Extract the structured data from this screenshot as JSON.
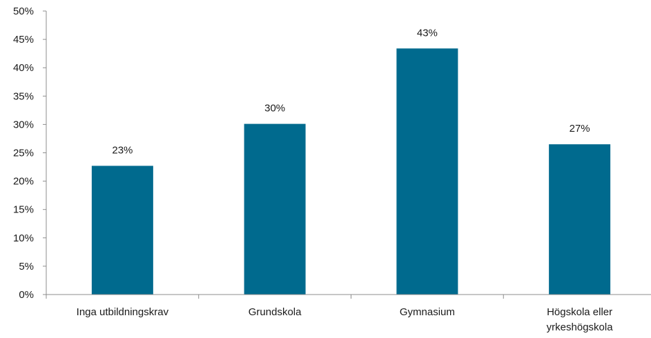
{
  "chart_data": {
    "type": "bar",
    "categories": [
      [
        "Inga utbildningskrav"
      ],
      [
        "Grundskola"
      ],
      [
        "Gymnasium"
      ],
      [
        "Högskola eller",
        "yrkeshögskola"
      ]
    ],
    "values": [
      22.7,
      30.1,
      43.4,
      26.5
    ],
    "data_labels": [
      "23%",
      "30%",
      "43%",
      "27%"
    ],
    "y_tick_labels": [
      "0%",
      "5%",
      "10%",
      "15%",
      "20%",
      "25%",
      "30%",
      "35%",
      "40%",
      "45%",
      "50%"
    ],
    "ylim": [
      0,
      50
    ],
    "ystep": 5,
    "grid": false,
    "legend": "none",
    "bar_color": "#006A8E",
    "title": "",
    "xlabel": "",
    "ylabel": ""
  }
}
